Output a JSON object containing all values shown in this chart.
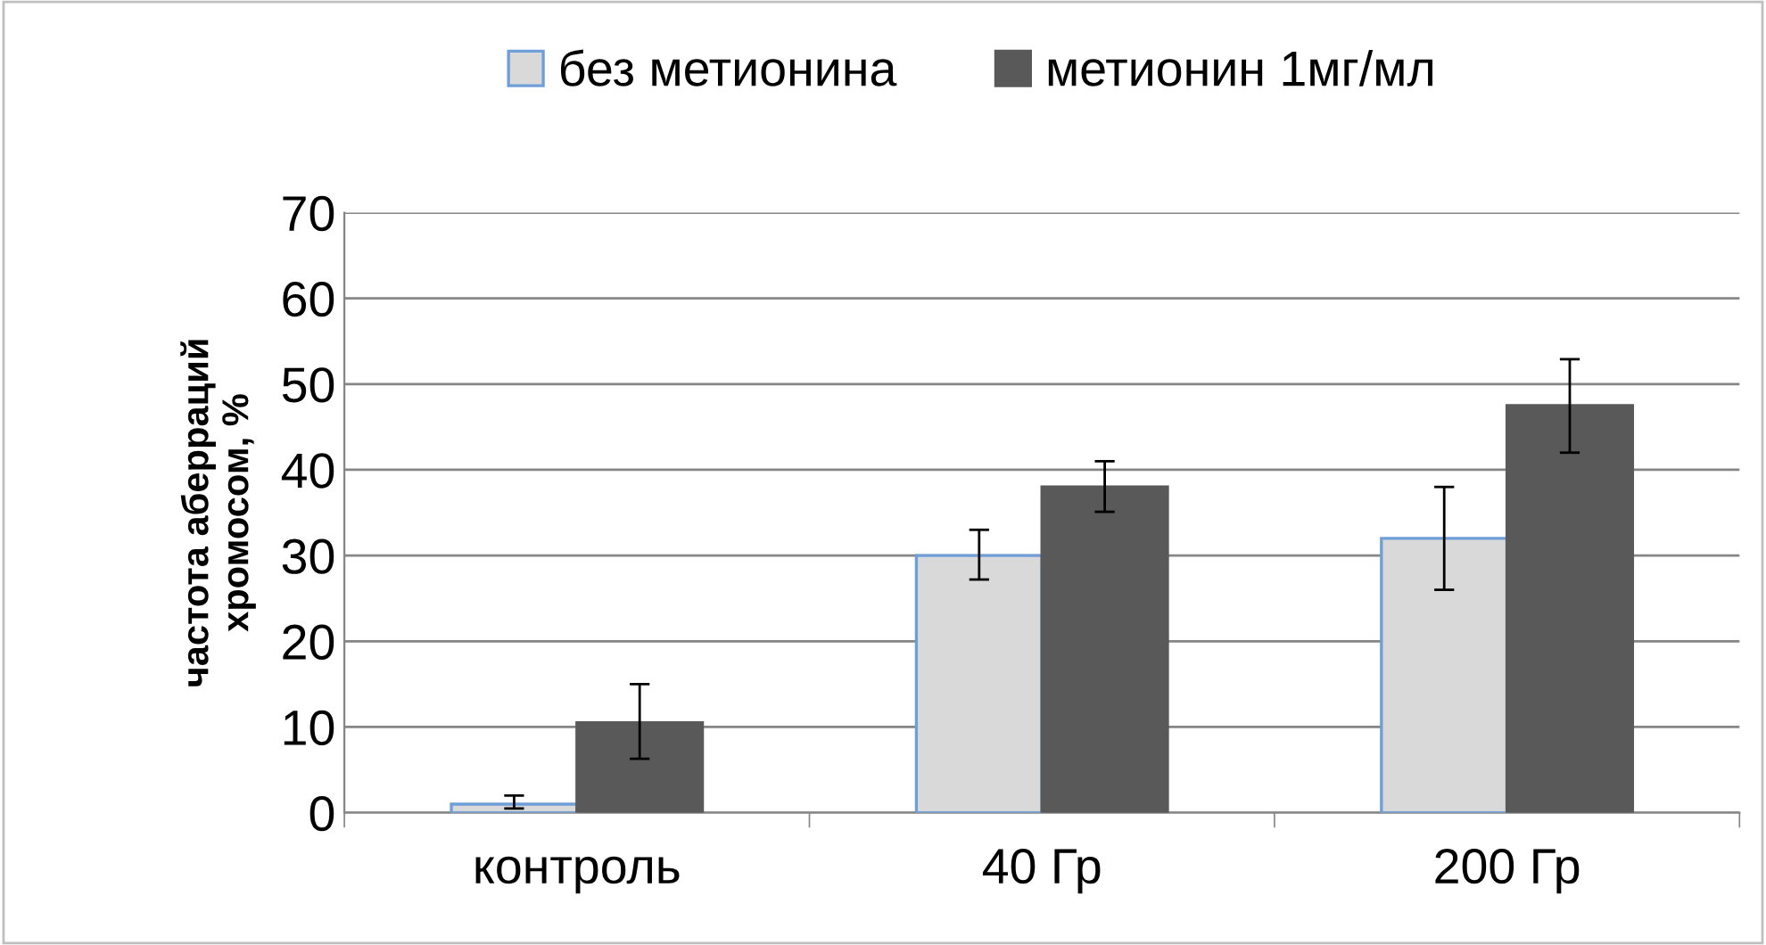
{
  "chart_data": {
    "type": "bar",
    "ylabel": "частота аберраций\nхромосом, %",
    "categories": [
      "контроль",
      "40 Гр",
      "200 Гр"
    ],
    "series": [
      {
        "name": "без метионина",
        "color": "#d9d9d9",
        "values": [
          1,
          30,
          32
        ],
        "errors": [
          [
            0.5,
            2
          ],
          [
            27.2,
            33
          ],
          [
            26,
            38
          ]
        ]
      },
      {
        "name": "метионин 1мг/мл",
        "color": "#595959",
        "values": [
          10.5,
          38,
          47.5
        ],
        "errors": [
          [
            6.3,
            15
          ],
          [
            35.1,
            41
          ],
          [
            42,
            52.9
          ]
        ]
      }
    ],
    "ylim": [
      0,
      70
    ],
    "yticks": [
      0,
      10,
      20,
      30,
      40,
      50,
      60,
      70
    ],
    "grid": "y",
    "legend": "top"
  }
}
